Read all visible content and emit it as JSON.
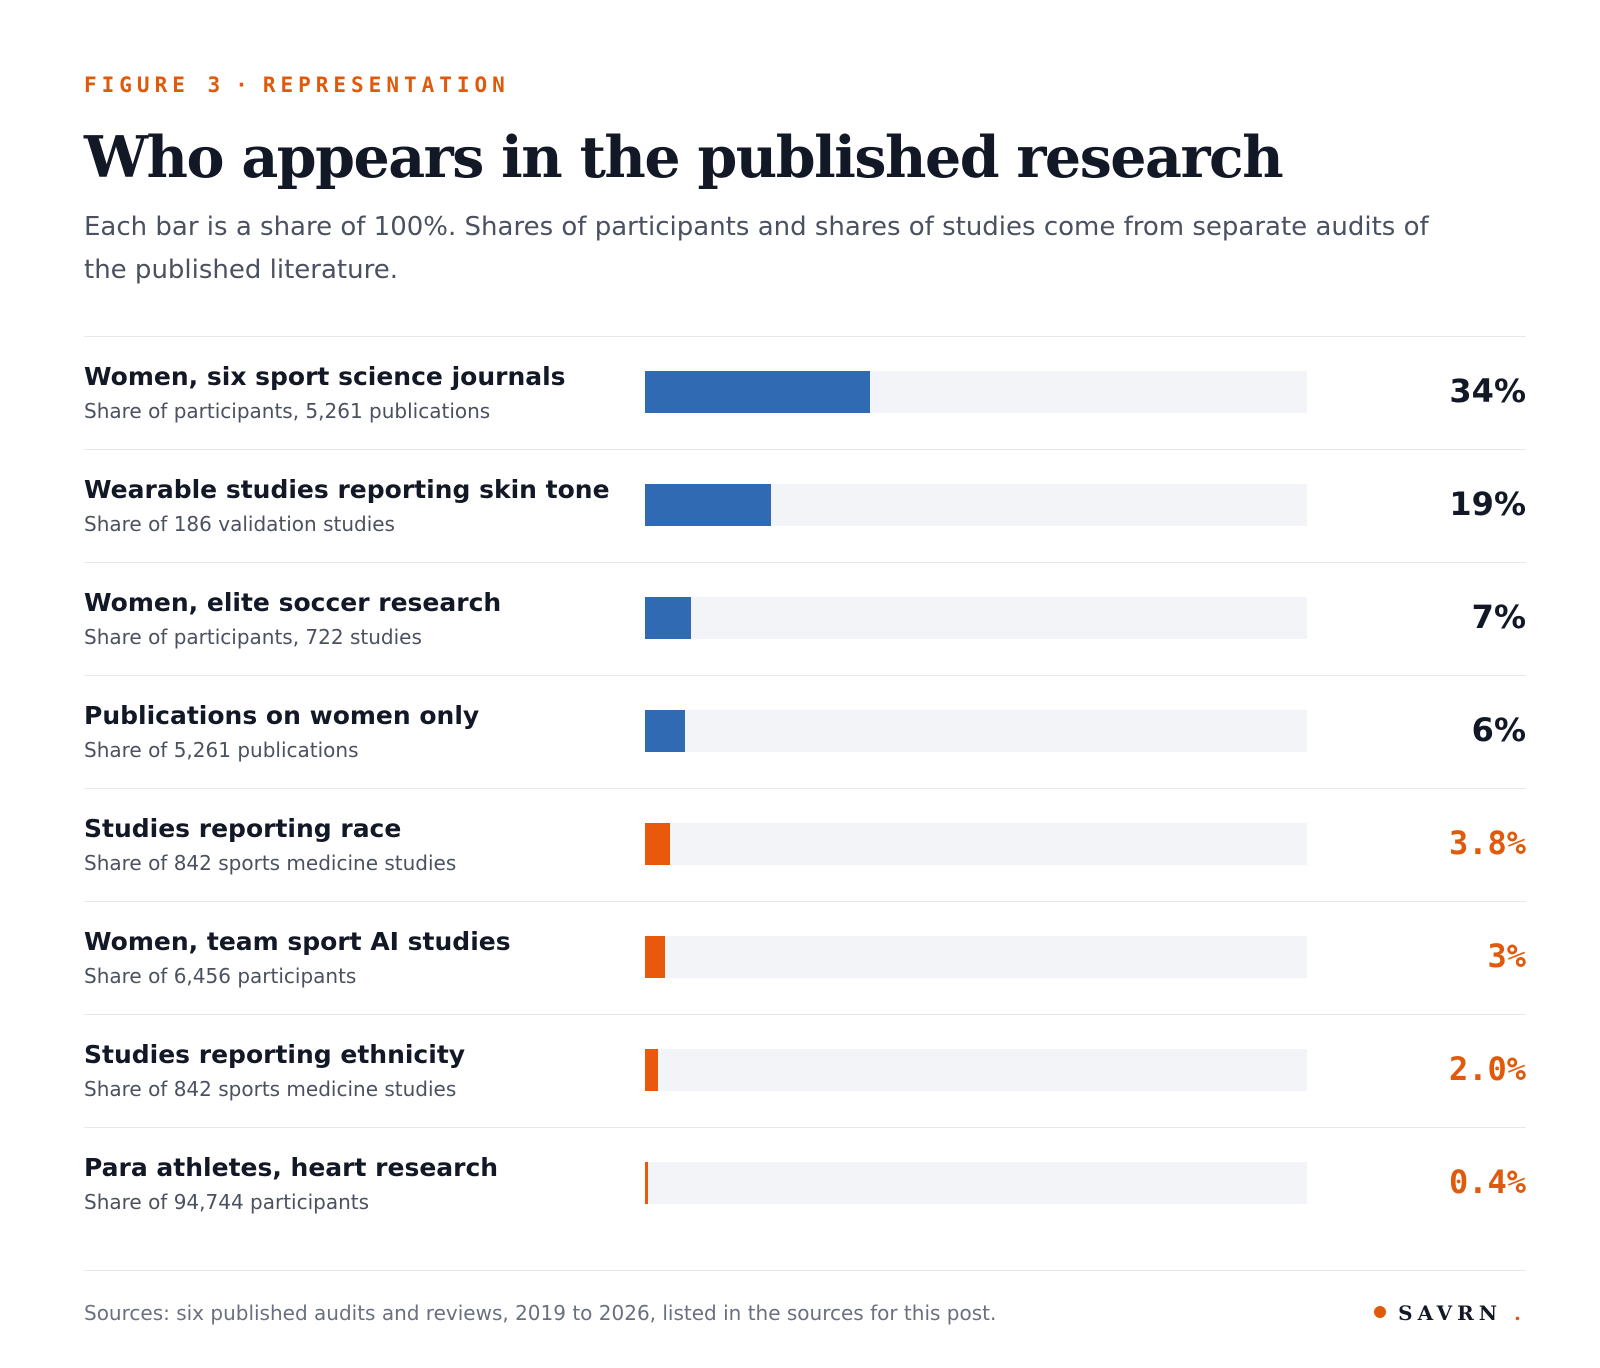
{
  "header": {
    "eyebrow_figure": "FIGURE 3",
    "eyebrow_separator": "·",
    "eyebrow_topic": "REPRESENTATION",
    "title": "Who appears in the published research",
    "subtitle": "Each bar is a share of 100%. Shares of participants and shares of studies come from separate audits of the published literature."
  },
  "colors": {
    "women_series": "#2f6ab3",
    "reporting_series": "#e8590c",
    "track": "#f3f4f7",
    "accent": "#e05a0c"
  },
  "chart_data": {
    "type": "bar",
    "orientation": "horizontal",
    "xlim": [
      0,
      100
    ],
    "unit": "%",
    "rows": [
      {
        "label": "Women, six sport science journals",
        "sublabel": "Share of participants, 5,261 publications",
        "value": 34,
        "display": "34%",
        "group": "women_series"
      },
      {
        "label": "Wearable studies reporting skin tone",
        "sublabel": "Share of 186 validation studies",
        "value": 19,
        "display": "19%",
        "group": "women_series"
      },
      {
        "label": "Women, elite soccer research",
        "sublabel": "Share of participants, 722 studies",
        "value": 7,
        "display": "7%",
        "group": "women_series"
      },
      {
        "label": "Publications on women only",
        "sublabel": "Share of 5,261 publications",
        "value": 6,
        "display": "6%",
        "group": "women_series"
      },
      {
        "label": "Studies reporting race",
        "sublabel": "Share of 842 sports medicine studies",
        "value": 3.8,
        "display": "3.8%",
        "group": "reporting_series"
      },
      {
        "label": "Women, team sport AI studies",
        "sublabel": "Share of 6,456 participants",
        "value": 3,
        "display": "3%",
        "group": "reporting_series"
      },
      {
        "label": "Studies reporting ethnicity",
        "sublabel": "Share of 842 sports medicine studies",
        "value": 2.0,
        "display": "2.0%",
        "group": "reporting_series"
      },
      {
        "label": "Para athletes, heart research",
        "sublabel": "Share of 94,744 participants",
        "value": 0.4,
        "display": "0.4%",
        "group": "reporting_series"
      }
    ]
  },
  "footer": {
    "sources": "Sources: six published audits and reviews, 2019 to 2026, listed in the sources for this post.",
    "brand": "SAVRN",
    "brand_period": "."
  }
}
